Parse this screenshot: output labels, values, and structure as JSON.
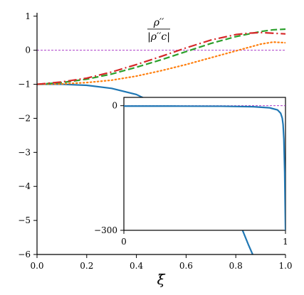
{
  "chart_data": [
    {
      "type": "line",
      "title": "",
      "xlabel": "ξ̄",
      "ylabel": "",
      "xlim": [
        0,
        1
      ],
      "ylim": [
        -6,
        1.1
      ],
      "xticks": [
        "0.0",
        "0.2",
        "0.4",
        "0.6",
        "0.8",
        "1.0"
      ],
      "xtick_values": [
        0,
        0.2,
        0.4,
        0.6,
        0.8,
        1.0
      ],
      "yticks": [
        "1",
        "0",
        "−1",
        "−2",
        "−3",
        "−4",
        "−5",
        "−6"
      ],
      "ytick_values": [
        1,
        0,
        -1,
        -2,
        -3,
        -4,
        -5,
        -6
      ],
      "annotation": {
        "numerator": "ρ′′",
        "denominator": "|ρ′′c|",
        "x": 0.49,
        "y": 0.6
      },
      "reference_line": {
        "y": 0,
        "color": "#a020c0",
        "style": "dashed"
      },
      "series": [
        {
          "color": "#1f77b4",
          "style": "solid",
          "x": [
            0.0,
            0.1,
            0.2,
            0.3,
            0.4,
            0.5,
            0.55,
            0.6,
            0.65,
            0.7,
            0.75,
            0.8,
            0.85,
            0.88,
            0.9
          ],
          "y": [
            -1.0,
            -1.0,
            -1.03,
            -1.12,
            -1.3,
            -1.65,
            -1.95,
            -2.3,
            -2.75,
            -3.3,
            -4.0,
            -4.8,
            -5.7,
            -6.2,
            -6.6
          ]
        },
        {
          "color": "#ff7f0e",
          "style": "dotted",
          "x": [
            0.0,
            0.1,
            0.2,
            0.3,
            0.4,
            0.5,
            0.6,
            0.7,
            0.8,
            0.85,
            0.9,
            0.95,
            1.0
          ],
          "y": [
            -1.0,
            -0.99,
            -0.95,
            -0.88,
            -0.76,
            -0.6,
            -0.42,
            -0.22,
            -0.02,
            0.08,
            0.18,
            0.24,
            0.22
          ]
        },
        {
          "color": "#2ca02c",
          "style": "dashed",
          "x": [
            0.0,
            0.1,
            0.2,
            0.3,
            0.4,
            0.5,
            0.6,
            0.7,
            0.8,
            0.9,
            0.95,
            1.0
          ],
          "y": [
            -1.0,
            -0.95,
            -0.85,
            -0.7,
            -0.5,
            -0.28,
            -0.04,
            0.2,
            0.4,
            0.55,
            0.6,
            0.62
          ]
        },
        {
          "color": "#d62728",
          "style": "dashdot",
          "x": [
            0.0,
            0.1,
            0.2,
            0.3,
            0.4,
            0.5,
            0.6,
            0.7,
            0.8,
            0.85,
            0.9,
            0.95,
            1.0
          ],
          "y": [
            -1.0,
            -0.93,
            -0.82,
            -0.64,
            -0.42,
            -0.18,
            0.07,
            0.3,
            0.46,
            0.5,
            0.52,
            0.5,
            0.48
          ]
        }
      ]
    },
    {
      "type": "line",
      "title": "",
      "xlabel": "",
      "ylabel": "",
      "xlim": [
        0,
        1
      ],
      "ylim": [
        -300,
        20
      ],
      "xticks": [
        "0",
        "1"
      ],
      "xtick_values": [
        0,
        1
      ],
      "yticks": [
        "0",
        "−300"
      ],
      "ytick_values": [
        0,
        -300
      ],
      "reference_line": {
        "y": 0,
        "color": "#a020c0",
        "style": "dashed"
      },
      "series": [
        {
          "color": "#1f77b4",
          "style": "solid",
          "x": [
            0.0,
            0.3,
            0.6,
            0.8,
            0.9,
            0.95,
            0.97,
            0.98,
            0.985,
            0.99,
            0.995,
            1.0
          ],
          "y": [
            -1,
            -1,
            -1.3,
            -2.5,
            -5,
            -10,
            -18,
            -30,
            -45,
            -80,
            -160,
            -300
          ]
        }
      ]
    }
  ]
}
